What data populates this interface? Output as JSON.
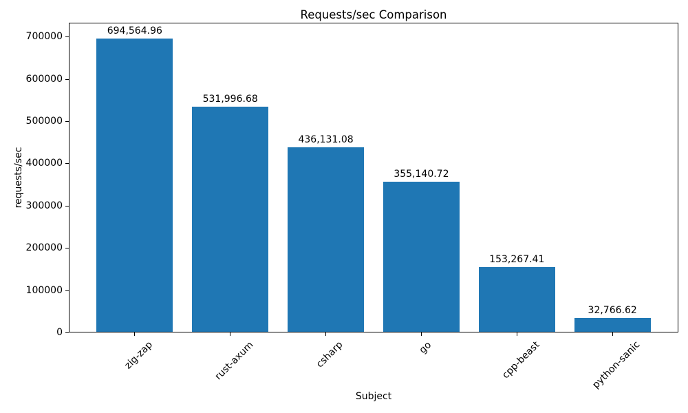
{
  "chart_data": {
    "type": "bar",
    "title": "Requests/sec Comparison",
    "xlabel": "Subject",
    "ylabel": "requests/sec",
    "categories": [
      "zig-zap",
      "rust-axum",
      "csharp",
      "go",
      "cpp-beast",
      "python-sanic"
    ],
    "values": [
      694564.96,
      531996.68,
      436131.08,
      355140.72,
      153267.41,
      32766.62
    ],
    "bar_labels": [
      "694,564.96",
      "531,996.68",
      "436,131.08",
      "355,140.72",
      "153,267.41",
      "32,766.62"
    ],
    "yticks": [
      0,
      100000,
      200000,
      300000,
      400000,
      500000,
      600000,
      700000
    ],
    "ytick_labels": [
      "0",
      "100000",
      "200000",
      "300000",
      "400000",
      "500000",
      "600000",
      "700000"
    ],
    "ylim": [
      0,
      733000
    ],
    "bar_color": "#1f77b4",
    "axis_color": "#000000",
    "text_color": "#000000",
    "grid": false,
    "legend": null,
    "xtick_rotation": 45
  }
}
